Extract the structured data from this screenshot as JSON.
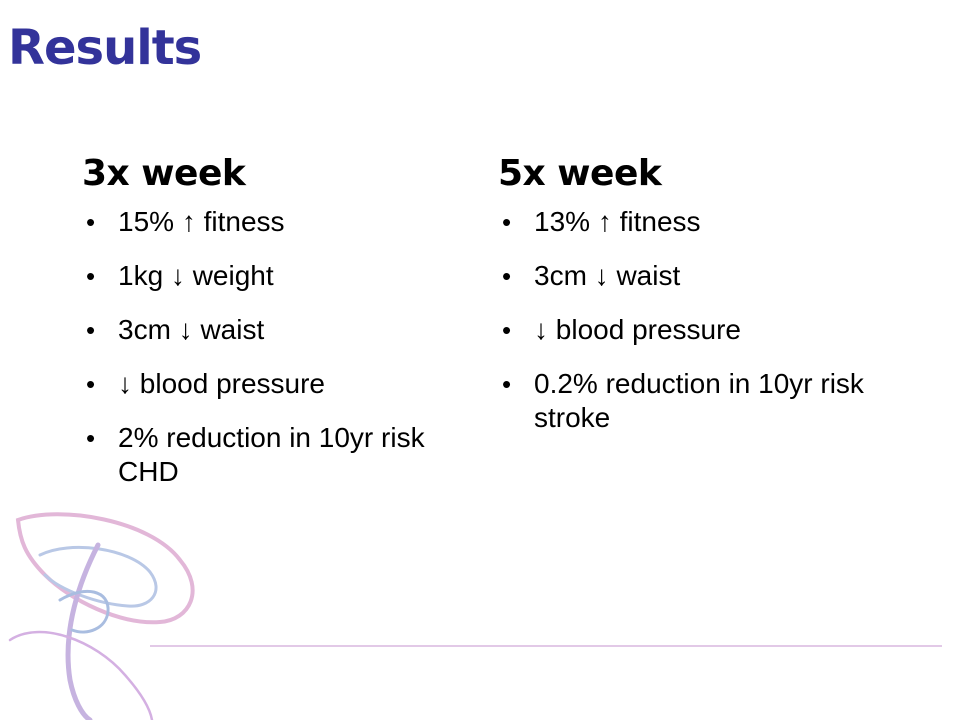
{
  "slide": {
    "title": "Results",
    "columns": [
      {
        "heading": "3x week",
        "bullets": [
          "15% ↑ fitness",
          "1kg ↓ weight",
          "3cm ↓ waist",
          "↓ blood pressure",
          "2% reduction in 10yr risk CHD"
        ]
      },
      {
        "heading": "5x week",
        "bullets": [
          "13% ↑ fitness",
          "3cm ↓ waist",
          "↓ blood pressure",
          "0.2% reduction in 10yr risk stroke"
        ]
      }
    ]
  },
  "theme": {
    "title_color": "#33339a",
    "swirl_colors": [
      "#d9a9d1",
      "#a9bde0",
      "#c9a5dc"
    ],
    "rule_color": "#d9b7df"
  },
  "icons": {
    "bullet": "bullet-dot-icon",
    "decoration": "swirl-logo-icon"
  }
}
